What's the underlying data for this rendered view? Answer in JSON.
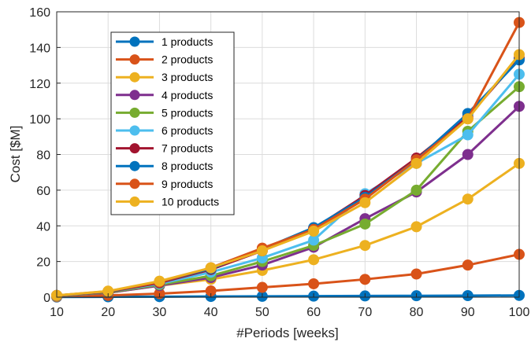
{
  "chart_data": {
    "type": "line",
    "xlabel": "#Periods [weeks]",
    "ylabel": "Cost [$M]",
    "x": [
      10,
      20,
      30,
      40,
      50,
      60,
      70,
      80,
      90,
      100
    ],
    "xlim": [
      10,
      100
    ],
    "ylim": [
      0,
      160
    ],
    "xticks": [
      "10",
      "20",
      "30",
      "40",
      "50",
      "60",
      "70",
      "80",
      "90",
      "100"
    ],
    "yticks": [
      "0",
      "20",
      "40",
      "60",
      "80",
      "100",
      "120",
      "140",
      "160"
    ],
    "grid": true,
    "legend_position": "top-left",
    "series": [
      {
        "name": "1 products",
        "color": "#0072BD",
        "values": [
          0.1,
          0.2,
          0.3,
          0.4,
          0.5,
          0.6,
          0.7,
          0.8,
          0.9,
          1.0
        ]
      },
      {
        "name": "2 products",
        "color": "#D95319",
        "values": [
          0.3,
          1.0,
          2.0,
          3.5,
          5.5,
          7.5,
          10,
          13,
          18,
          24
        ]
      },
      {
        "name": "3 products",
        "color": "#EDB120",
        "values": [
          0.5,
          2.5,
          6.5,
          10,
          15,
          21,
          29,
          39.5,
          55,
          75
        ]
      },
      {
        "name": "4 products",
        "color": "#7E2F8E",
        "values": [
          0.6,
          2.5,
          6.5,
          11,
          18,
          28,
          44,
          59,
          80,
          107
        ]
      },
      {
        "name": "5 products",
        "color": "#77AC30",
        "values": [
          0.7,
          2.7,
          7,
          12,
          20,
          29,
          41,
          60,
          93,
          118
        ]
      },
      {
        "name": "6 products",
        "color": "#4DBEEE",
        "values": [
          0.8,
          3,
          7.5,
          14,
          22,
          32,
          58,
          75,
          91,
          125
        ]
      },
      {
        "name": "7 products",
        "color": "#A2142F",
        "values": [
          0.9,
          3,
          8,
          15.5,
          26,
          38.5,
          57,
          78,
          101,
          134
        ]
      },
      {
        "name": "8 products",
        "color": "#0072BD",
        "values": [
          1.0,
          3.2,
          8.5,
          16,
          27,
          39,
          56,
          77,
          103,
          133
        ]
      },
      {
        "name": "9 products",
        "color": "#D95319",
        "values": [
          1.0,
          3.3,
          8.5,
          16.5,
          27.5,
          38,
          55,
          77,
          100,
          154
        ]
      },
      {
        "name": "10 products",
        "color": "#EDB120",
        "values": [
          1.0,
          3.4,
          9,
          16.5,
          26,
          37,
          53,
          75,
          100,
          136
        ]
      }
    ]
  }
}
